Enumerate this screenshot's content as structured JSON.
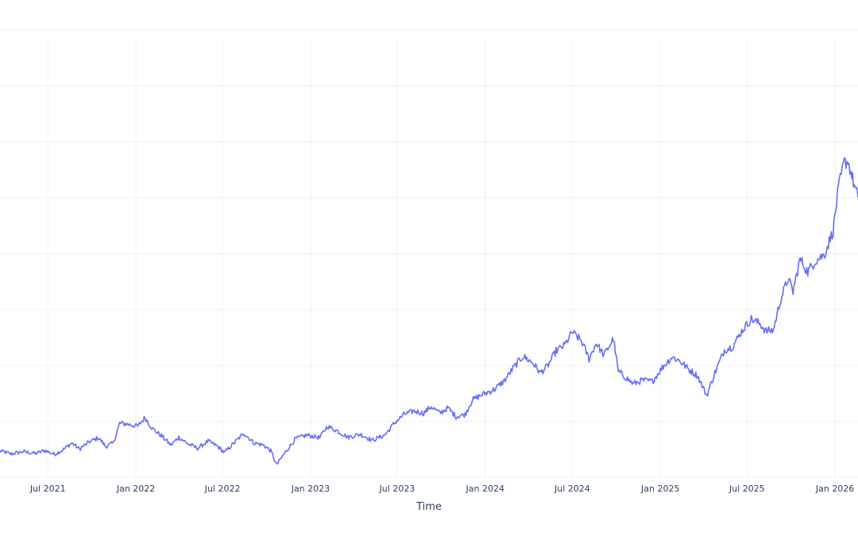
{
  "chart_data": {
    "type": "line",
    "xlabel": "Time",
    "ylabel": "",
    "grid": true,
    "line_color": "#636efa",
    "x_ticks": [
      {
        "date": "2021-07-01",
        "label": "Jul 2021"
      },
      {
        "date": "2022-01-01",
        "label": "Jan 2022"
      },
      {
        "date": "2022-07-01",
        "label": "Jul 2022"
      },
      {
        "date": "2023-01-01",
        "label": "Jan 2023"
      },
      {
        "date": "2023-07-01",
        "label": "Jul 2023"
      },
      {
        "date": "2024-01-01",
        "label": "Jan 2024"
      },
      {
        "date": "2024-07-01",
        "label": "Jul 2024"
      },
      {
        "date": "2025-01-01",
        "label": "Jan 2025"
      },
      {
        "date": "2025-07-01",
        "label": "Jul 2025"
      },
      {
        "date": "2026-01-01",
        "label": "Jan 2026"
      }
    ],
    "xlim": [
      "2021-03-23",
      "2026-02-18"
    ],
    "ylim": [
      0,
      100
    ],
    "series": [
      {
        "values": [
          [
            "2021-03-23",
            6.2
          ],
          [
            "2021-04-15",
            5.5
          ],
          [
            "2021-05-10",
            6.0
          ],
          [
            "2021-06-05",
            5.6
          ],
          [
            "2021-06-25",
            6.3
          ],
          [
            "2021-07-15",
            5.4
          ],
          [
            "2021-08-01",
            6.4
          ],
          [
            "2021-08-20",
            8.0
          ],
          [
            "2021-09-05",
            6.6
          ],
          [
            "2021-09-25",
            8.2
          ],
          [
            "2021-10-15",
            9.2
          ],
          [
            "2021-10-30",
            7.2
          ],
          [
            "2021-11-15",
            8.0
          ],
          [
            "2021-11-28",
            12.5
          ],
          [
            "2021-12-15",
            12.3
          ],
          [
            "2022-01-05",
            11.8
          ],
          [
            "2022-01-20",
            13.8
          ],
          [
            "2022-02-05",
            11.2
          ],
          [
            "2022-02-25",
            9.5
          ],
          [
            "2022-03-15",
            7.5
          ],
          [
            "2022-04-01",
            9.3
          ],
          [
            "2022-04-20",
            7.8
          ],
          [
            "2022-05-10",
            6.8
          ],
          [
            "2022-06-01",
            8.4
          ],
          [
            "2022-06-20",
            7.3
          ],
          [
            "2022-07-05",
            5.8
          ],
          [
            "2022-07-25",
            8.0
          ],
          [
            "2022-08-15",
            10.2
          ],
          [
            "2022-09-05",
            8.0
          ],
          [
            "2022-09-25",
            7.5
          ],
          [
            "2022-10-10",
            6.2
          ],
          [
            "2022-10-22",
            3.0
          ],
          [
            "2022-11-10",
            6.0
          ],
          [
            "2022-12-01",
            9.0
          ],
          [
            "2022-12-25",
            9.8
          ],
          [
            "2023-01-20",
            9.2
          ],
          [
            "2023-02-05",
            11.8
          ],
          [
            "2023-02-25",
            10.8
          ],
          [
            "2023-03-20",
            9.3
          ],
          [
            "2023-04-15",
            10.0
          ],
          [
            "2023-05-10",
            8.6
          ],
          [
            "2023-06-05",
            9.8
          ],
          [
            "2023-06-25",
            12.5
          ],
          [
            "2023-07-15",
            14.5
          ],
          [
            "2023-08-05",
            15.3
          ],
          [
            "2023-08-25",
            14.8
          ],
          [
            "2023-09-10",
            16.3
          ],
          [
            "2023-09-28",
            14.8
          ],
          [
            "2023-10-15",
            16.0
          ],
          [
            "2023-11-01",
            14.0
          ],
          [
            "2023-11-20",
            14.5
          ],
          [
            "2023-12-05",
            17.8
          ],
          [
            "2023-12-25",
            19.0
          ],
          [
            "2024-01-20",
            20.2
          ],
          [
            "2024-02-10",
            22.2
          ],
          [
            "2024-03-01",
            25.3
          ],
          [
            "2024-03-20",
            27.8
          ],
          [
            "2024-04-10",
            26.2
          ],
          [
            "2024-04-25",
            24.0
          ],
          [
            "2024-05-10",
            25.5
          ],
          [
            "2024-05-28",
            29.0
          ],
          [
            "2024-06-15",
            30.3
          ],
          [
            "2024-07-01",
            33.3
          ],
          [
            "2024-07-20",
            31.3
          ],
          [
            "2024-08-05",
            27.2
          ],
          [
            "2024-08-20",
            30.8
          ],
          [
            "2024-09-05",
            28.0
          ],
          [
            "2024-09-25",
            31.8
          ],
          [
            "2024-10-05",
            24.3
          ],
          [
            "2024-10-20",
            23.0
          ],
          [
            "2024-11-05",
            21.5
          ],
          [
            "2024-11-25",
            22.3
          ],
          [
            "2024-12-15",
            22.0
          ],
          [
            "2025-01-05",
            25.2
          ],
          [
            "2025-01-25",
            27.6
          ],
          [
            "2025-02-10",
            26.8
          ],
          [
            "2025-03-01",
            24.8
          ],
          [
            "2025-03-20",
            23.3
          ],
          [
            "2025-04-08",
            18.8
          ],
          [
            "2025-04-25",
            24.0
          ],
          [
            "2025-05-15",
            29.2
          ],
          [
            "2025-06-01",
            30.0
          ],
          [
            "2025-06-20",
            33.5
          ],
          [
            "2025-07-10",
            36.3
          ],
          [
            "2025-07-28",
            35.2
          ],
          [
            "2025-08-10",
            33.5
          ],
          [
            "2025-08-25",
            33.7
          ],
          [
            "2025-09-10",
            41.0
          ],
          [
            "2025-09-25",
            45.5
          ],
          [
            "2025-10-05",
            42.5
          ],
          [
            "2025-10-20",
            50.0
          ],
          [
            "2025-11-05",
            47.0
          ],
          [
            "2025-11-20",
            49.5
          ],
          [
            "2025-12-10",
            51.0
          ],
          [
            "2025-12-28",
            56.5
          ],
          [
            "2026-01-08",
            66.0
          ],
          [
            "2026-01-20",
            72.0
          ],
          [
            "2026-01-28",
            72.3
          ],
          [
            "2026-02-05",
            69.0
          ],
          [
            "2026-02-12",
            66.0
          ],
          [
            "2026-02-18",
            64.0
          ]
        ]
      }
    ]
  }
}
